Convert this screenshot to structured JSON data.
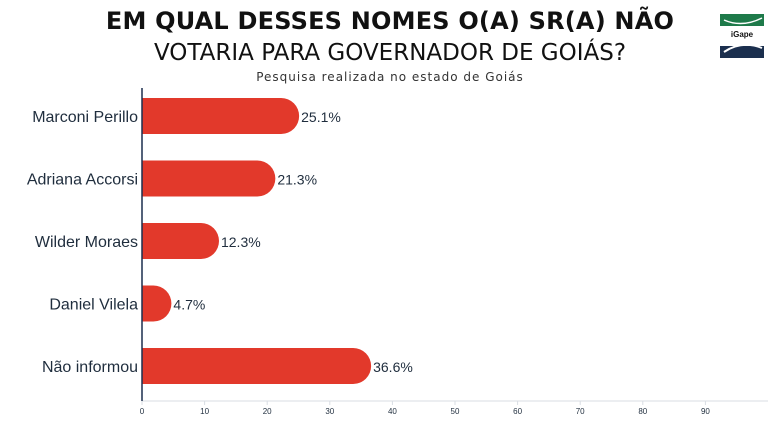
{
  "title_line1": "EM QUAL DESSES NOMES O(A) SR(A) NÃO",
  "title_line2": "VOTARIA PARA GOVERNADOR DE GOIÁS?",
  "subtitle": "Pesquisa realizada no estado de Goiás",
  "logo": {
    "text": "iGape",
    "colors": {
      "green": "#1e7a4a",
      "navy": "#1b2f4e"
    }
  },
  "colors": {
    "bar": "#e2392b",
    "axis": "#1b2f4e",
    "text": "#1f2d3d",
    "grid": "#d8dde3"
  },
  "chart_data": {
    "type": "bar",
    "orientation": "horizontal",
    "categories": [
      "Marconi Perillo",
      "Adriana Accorsi",
      "Wilder Moraes",
      "Daniel Vilela",
      "Não informou"
    ],
    "values": [
      25.1,
      21.3,
      12.3,
      4.7,
      36.6
    ],
    "value_labels": [
      "25.1%",
      "21.3%",
      "12.3%",
      "4.7%",
      "36.6%"
    ],
    "xlim": [
      0,
      100
    ],
    "xticks": [
      0,
      10,
      20,
      30,
      40,
      50,
      60,
      70,
      80,
      90
    ],
    "title": "EM QUAL DESSES NOMES O(A) SR(A) NÃO VOTARIA PARA GOVERNADOR DE GOIÁS?",
    "subtitle": "Pesquisa realizada no estado de Goiás",
    "xlabel": "",
    "ylabel": "",
    "grid": false,
    "legend": "none"
  }
}
